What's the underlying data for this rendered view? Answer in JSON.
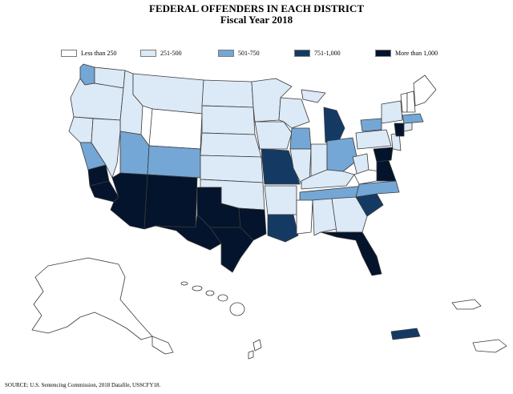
{
  "title": {
    "line1": "FEDERAL OFFENDERS IN EACH DISTRICT",
    "line2": "Fiscal Year 2018"
  },
  "colors": {
    "lt250": "#ffffff",
    "r251_500": "#dce9f6",
    "r501_750": "#74a7d6",
    "r751_1000": "#143a64",
    "gt1000": "#04142c"
  },
  "legend": [
    {
      "label": "Less than 250",
      "color_key": "lt250"
    },
    {
      "label": "251-500",
      "color_key": "r251_500"
    },
    {
      "label": "501-750",
      "color_key": "r501_750"
    },
    {
      "label": "751-1,000",
      "color_key": "r751_1000"
    },
    {
      "label": "More than 1,000",
      "color_key": "gt1000"
    }
  ],
  "source": "SOURCE: U.S. Sentencing Commission, 2018 Datafile, USSCFY18."
}
